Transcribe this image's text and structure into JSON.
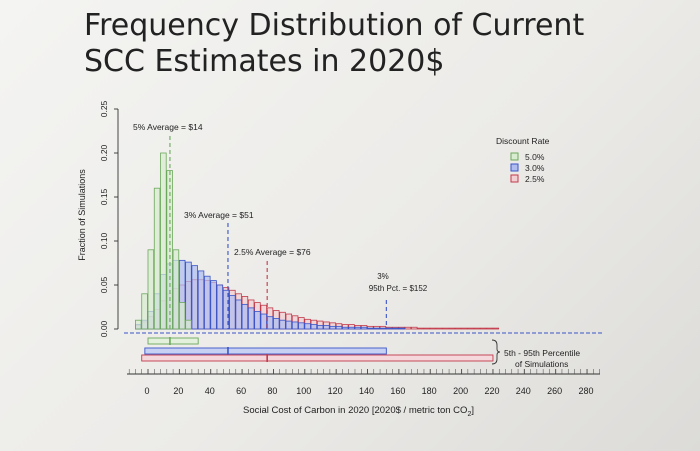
{
  "chart_data": {
    "type": "bar",
    "title": "Frequency Distribution of Current SCC Estimates in 2020$",
    "xlabel": "Social Cost of Carbon in 2020 [2020$ / metric ton CO",
    "xlabel_sub": "2",
    "xlabel_end": "]",
    "ylabel": "Fraction of Simulations",
    "xlim": [
      -10,
      285
    ],
    "ylim": [
      0,
      0.25
    ],
    "x_ticks": [
      "0",
      "20",
      "40",
      "60",
      "80",
      "100",
      "120",
      "140",
      "160",
      "180",
      "200",
      "220",
      "240",
      "260",
      "280"
    ],
    "y_ticks": [
      "0.00",
      "0.05",
      "0.10",
      "0.15",
      "0.20",
      "0.25"
    ],
    "bin_width": 4,
    "legend": {
      "title": "Discount Rate",
      "position": "top-right",
      "entries": [
        "5.0%",
        "3.0%",
        "2.5%"
      ]
    },
    "series": [
      {
        "name": "5.0%",
        "color": "#6ca85c",
        "fill": "#d8ecd0",
        "x": [
          -8,
          -4,
          0,
          4,
          8,
          12,
          16,
          20,
          24
        ],
        "values": [
          0.01,
          0.04,
          0.09,
          0.16,
          0.2,
          0.18,
          0.09,
          0.03,
          0.01
        ]
      },
      {
        "name": "3.0%",
        "color": "#3a55c8",
        "fill": "#aebcf0",
        "x": [
          -8,
          -4,
          0,
          4,
          8,
          12,
          16,
          20,
          24,
          28,
          32,
          36,
          40,
          44,
          48,
          52,
          56,
          60,
          64,
          68,
          72,
          76,
          80,
          84,
          88,
          92,
          96,
          100,
          104,
          108,
          112,
          116,
          120,
          124,
          128,
          132,
          136,
          140,
          144,
          148,
          152,
          156,
          160
        ],
        "values": [
          0.005,
          0.01,
          0.02,
          0.04,
          0.062,
          0.074,
          0.078,
          0.078,
          0.076,
          0.072,
          0.066,
          0.06,
          0.055,
          0.05,
          0.044,
          0.038,
          0.033,
          0.028,
          0.024,
          0.02,
          0.017,
          0.014,
          0.012,
          0.01,
          0.009,
          0.008,
          0.007,
          0.006,
          0.005,
          0.004,
          0.004,
          0.003,
          0.003,
          0.002,
          0.002,
          0.002,
          0.002,
          0.001,
          0.001,
          0.001,
          0.001,
          0.001,
          0.001
        ]
      },
      {
        "name": "2.5%",
        "color": "#c23a4a",
        "fill": "#f1cfd3",
        "x": [
          -8,
          -4,
          0,
          4,
          8,
          12,
          16,
          20,
          24,
          28,
          32,
          36,
          40,
          44,
          48,
          52,
          56,
          60,
          64,
          68,
          72,
          76,
          80,
          84,
          88,
          92,
          96,
          100,
          104,
          108,
          112,
          116,
          120,
          124,
          128,
          132,
          136,
          140,
          144,
          148,
          152,
          156,
          160,
          164,
          168,
          172,
          176,
          180,
          184,
          188,
          192,
          196,
          200,
          204,
          208,
          212,
          216,
          220
        ],
        "values": [
          0.004,
          0.008,
          0.014,
          0.022,
          0.032,
          0.04,
          0.046,
          0.05,
          0.054,
          0.056,
          0.056,
          0.055,
          0.053,
          0.05,
          0.047,
          0.044,
          0.04,
          0.037,
          0.033,
          0.03,
          0.027,
          0.024,
          0.021,
          0.019,
          0.017,
          0.015,
          0.013,
          0.011,
          0.01,
          0.009,
          0.008,
          0.007,
          0.006,
          0.005,
          0.005,
          0.004,
          0.004,
          0.003,
          0.003,
          0.003,
          0.002,
          0.002,
          0.002,
          0.002,
          0.002,
          0.001,
          0.001,
          0.001,
          0.001,
          0.001,
          0.001,
          0.001,
          0.001,
          0.001,
          0.001,
          0.001,
          0.001,
          0.001
        ]
      }
    ],
    "averages": [
      {
        "label": "5% Average = $14",
        "x": 14,
        "color": "#6ca85c"
      },
      {
        "label": "3% Average = $51",
        "x": 51,
        "color": "#3a55c8"
      },
      {
        "label": "2.5% Average = $76",
        "x": 76,
        "color": "#c23a4a"
      }
    ],
    "percentile_marker": {
      "label_line1": "3%",
      "label_line2": "95th Pct. = $152",
      "x": 152,
      "color": "#3a55c8"
    },
    "percentile_ranges": {
      "label_line1": "5th - 95th Percentile",
      "label_line2": "of Simulations",
      "bars": [
        {
          "series": "5.0%",
          "low": 0,
          "high": 32,
          "mean": 14,
          "color": "#6ca85c",
          "fill": "#e2f0dc"
        },
        {
          "series": "3.0%",
          "low": -2,
          "high": 152,
          "mean": 51,
          "color": "#3a55c8",
          "fill": "#c7d1f4"
        },
        {
          "series": "2.5%",
          "low": -4,
          "high": 220,
          "mean": 76,
          "color": "#c23a4a",
          "fill": "#f5d8dc"
        }
      ]
    }
  }
}
